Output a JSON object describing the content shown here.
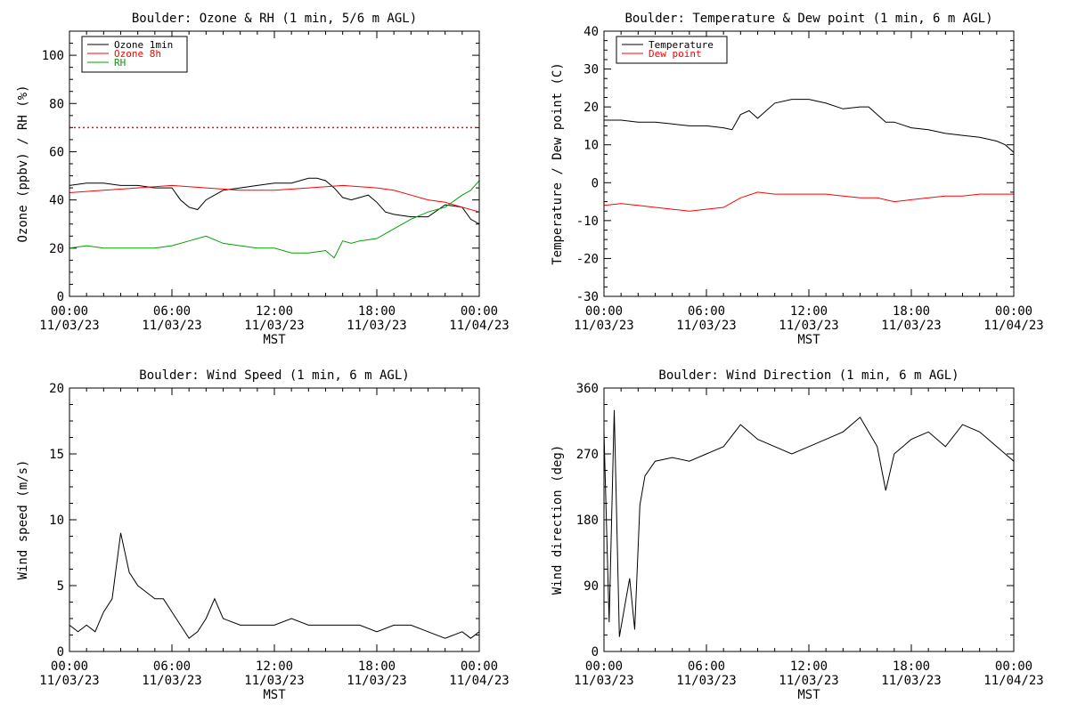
{
  "chart_data": [
    {
      "type": "line",
      "title": "Boulder: Ozone & RH (1 min, 5/6 m AGL)",
      "ylabel": "Ozone (ppbv) / RH (%)",
      "xlabel": "MST",
      "xlim": [
        "2023-11-03 00:00",
        "2023-11-04 00:00"
      ],
      "xticks": [
        {
          "time": "00:00",
          "date": "11/03/23"
        },
        {
          "time": "06:00",
          "date": "11/03/23"
        },
        {
          "time": "12:00",
          "date": "11/03/23"
        },
        {
          "time": "18:00",
          "date": "11/03/23"
        },
        {
          "time": "00:00",
          "date": "11/04/23"
        }
      ],
      "ylim": [
        0,
        110
      ],
      "yticks": [
        0,
        20,
        40,
        60,
        80,
        100
      ],
      "legend_position": "top-left",
      "reference_line": {
        "y": 70,
        "color": "#ff0000",
        "style": "dotted"
      },
      "series": [
        {
          "name": "Ozone 1min",
          "color": "#000000",
          "x": [
            0,
            1,
            2,
            3,
            4,
            5,
            6,
            6.5,
            7,
            7.5,
            8,
            8.5,
            9,
            10,
            11,
            12,
            13,
            14,
            14.5,
            15,
            15.5,
            16,
            16.5,
            17,
            17.5,
            18,
            18.5,
            19,
            20,
            21,
            22,
            23,
            23.5,
            24
          ],
          "y": [
            46,
            47,
            47,
            46,
            46,
            45,
            45,
            40,
            37,
            36,
            40,
            42,
            44,
            45,
            46,
            47,
            47,
            49,
            49,
            48,
            45,
            41,
            40,
            41,
            42,
            39,
            35,
            34,
            33,
            33,
            38,
            37,
            32,
            30
          ]
        },
        {
          "name": "Ozone 8h",
          "color": "#ff0000",
          "x": [
            0,
            2,
            4,
            6,
            8,
            10,
            12,
            14,
            16,
            18,
            19,
            20,
            21,
            22,
            23,
            24
          ],
          "y": [
            43,
            44,
            45,
            46,
            45,
            44,
            44,
            45,
            46,
            45,
            44,
            42,
            40,
            39,
            37,
            35
          ]
        },
        {
          "name": "RH",
          "color": "#00a000",
          "x": [
            0,
            1,
            2,
            3,
            4,
            5,
            6,
            7,
            8,
            9,
            10,
            11,
            12,
            13,
            14,
            15,
            15.5,
            16,
            16.5,
            17,
            18,
            19,
            20,
            21,
            22,
            23,
            23.5,
            24
          ],
          "y": [
            20,
            21,
            20,
            20,
            20,
            20,
            21,
            23,
            25,
            22,
            21,
            20,
            20,
            18,
            18,
            19,
            16,
            23,
            22,
            23,
            24,
            28,
            32,
            35,
            37,
            42,
            44,
            48
          ]
        }
      ]
    },
    {
      "type": "line",
      "title": "Boulder: Temperature & Dew point (1 min, 6 m AGL)",
      "ylabel": "Temperature / Dew point (C)",
      "xlabel": "MST",
      "xlim": [
        "2023-11-03 00:00",
        "2023-11-04 00:00"
      ],
      "xticks": [
        {
          "time": "00:00",
          "date": "11/03/23"
        },
        {
          "time": "06:00",
          "date": "11/03/23"
        },
        {
          "time": "12:00",
          "date": "11/03/23"
        },
        {
          "time": "18:00",
          "date": "11/03/23"
        },
        {
          "time": "00:00",
          "date": "11/04/23"
        }
      ],
      "ylim": [
        -30,
        40
      ],
      "yticks": [
        -30,
        -20,
        -10,
        0,
        10,
        20,
        30,
        40
      ],
      "legend_position": "top-left",
      "series": [
        {
          "name": "Temperature",
          "color": "#000000",
          "x": [
            0,
            1,
            2,
            3,
            4,
            5,
            6,
            7,
            7.5,
            8,
            8.5,
            9,
            9.5,
            10,
            11,
            12,
            13,
            14,
            15,
            15.5,
            16,
            16.5,
            17,
            18,
            19,
            20,
            21,
            22,
            23,
            23.5,
            24
          ],
          "y": [
            16.5,
            16.5,
            16,
            16,
            15.5,
            15,
            15,
            14.5,
            14,
            18,
            19,
            17,
            19,
            21,
            22,
            22,
            21,
            19.5,
            20,
            20,
            18,
            16,
            16,
            14.5,
            14,
            13,
            12.5,
            12,
            11,
            10,
            8
          ]
        },
        {
          "name": "Dew point",
          "color": "#ff0000",
          "x": [
            0,
            1,
            2,
            3,
            4,
            5,
            6,
            7,
            8,
            9,
            10,
            11,
            12,
            13,
            14,
            15,
            16,
            17,
            18,
            19,
            20,
            21,
            22,
            23,
            24
          ],
          "y": [
            -6,
            -5.5,
            -6,
            -6.5,
            -7,
            -7.5,
            -7,
            -6.5,
            -4,
            -2.5,
            -3,
            -3,
            -3,
            -3,
            -3.5,
            -4,
            -4,
            -5,
            -4.5,
            -4,
            -3.5,
            -3.5,
            -3,
            -3,
            -3
          ]
        }
      ]
    },
    {
      "type": "line",
      "title": "Boulder: Wind Speed (1 min, 6 m AGL)",
      "ylabel": "Wind speed (m/s)",
      "xlabel": "MST",
      "xlim": [
        "2023-11-03 00:00",
        "2023-11-04 00:00"
      ],
      "xticks": [
        {
          "time": "00:00",
          "date": "11/03/23"
        },
        {
          "time": "06:00",
          "date": "11/03/23"
        },
        {
          "time": "12:00",
          "date": "11/03/23"
        },
        {
          "time": "18:00",
          "date": "11/03/23"
        },
        {
          "time": "00:00",
          "date": "11/04/23"
        }
      ],
      "ylim": [
        0,
        20
      ],
      "yticks": [
        0,
        5,
        10,
        15,
        20
      ],
      "series": [
        {
          "name": "",
          "color": "#000000",
          "x": [
            0,
            0.5,
            1,
            1.5,
            2,
            2.5,
            3,
            3.5,
            4,
            4.5,
            5,
            5.5,
            6,
            6.5,
            7,
            7.5,
            8,
            8.5,
            9,
            10,
            11,
            12,
            13,
            14,
            15,
            16,
            17,
            18,
            19,
            20,
            21,
            22,
            23,
            23.5,
            24
          ],
          "y": [
            2,
            1.5,
            2,
            1.5,
            3,
            4,
            9,
            6,
            5,
            4.5,
            4,
            4,
            3,
            2,
            1,
            1.5,
            2.5,
            4,
            2.5,
            2,
            2,
            2,
            2.5,
            2,
            2,
            2,
            2,
            1.5,
            2,
            2,
            1.5,
            1,
            1.5,
            1,
            1.5
          ]
        }
      ]
    },
    {
      "type": "line",
      "title": "Boulder: Wind Direction (1 min, 6 m AGL)",
      "ylabel": "Wind direction (deg)",
      "xlabel": "MST",
      "xlim": [
        "2023-11-03 00:00",
        "2023-11-04 00:00"
      ],
      "xticks": [
        {
          "time": "00:00",
          "date": "11/03/23"
        },
        {
          "time": "06:00",
          "date": "11/03/23"
        },
        {
          "time": "12:00",
          "date": "11/03/23"
        },
        {
          "time": "18:00",
          "date": "11/03/23"
        },
        {
          "time": "00:00",
          "date": "11/04/23"
        }
      ],
      "ylim": [
        0,
        360
      ],
      "yticks": [
        0,
        90,
        180,
        270,
        360
      ],
      "series": [
        {
          "name": "",
          "color": "#000000",
          "x": [
            0,
            0.3,
            0.6,
            0.9,
            1.2,
            1.5,
            1.8,
            2.1,
            2.4,
            3,
            4,
            5,
            6,
            7,
            8,
            8.5,
            9,
            10,
            11,
            12,
            13,
            14,
            15,
            16,
            16.5,
            17,
            18,
            19,
            20,
            21,
            22,
            23,
            23.5,
            24
          ],
          "y": [
            300,
            40,
            330,
            20,
            60,
            100,
            30,
            200,
            240,
            260,
            265,
            260,
            270,
            280,
            310,
            300,
            290,
            280,
            270,
            280,
            290,
            300,
            320,
            280,
            220,
            270,
            290,
            300,
            280,
            310,
            300,
            280,
            270,
            260
          ]
        }
      ]
    }
  ]
}
